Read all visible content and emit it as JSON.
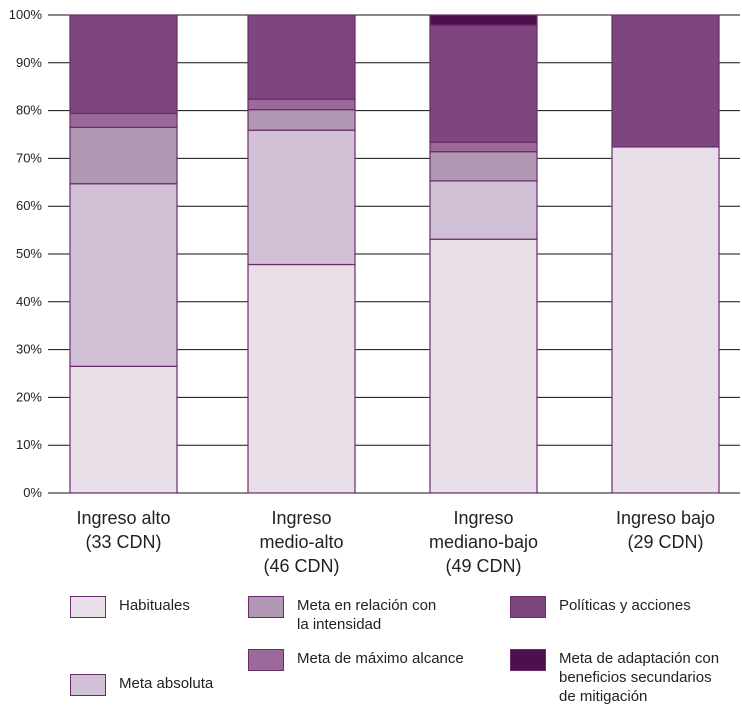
{
  "chart_data": {
    "type": "bar",
    "stacked": true,
    "ylim": [
      0,
      100
    ],
    "yticks": [
      "0%",
      "10%",
      "20%",
      "30%",
      "40%",
      "50%",
      "60%",
      "70%",
      "80%",
      "90%",
      "100%"
    ],
    "grid": true,
    "legend_position": "bottom",
    "categories": [
      [
        "Ingreso alto",
        "(33 CDN)"
      ],
      [
        "Ingreso",
        "medio-alto",
        "(46 CDN)"
      ],
      [
        "Ingreso",
        "mediano-bajo",
        "(49 CDN)"
      ],
      [
        "Ingreso bajo",
        "(29 CDN)"
      ]
    ],
    "series": [
      {
        "name": "Habituales",
        "color": "#e9dfe9",
        "values": [
          26.5,
          47.8,
          53.1,
          72.4
        ]
      },
      {
        "name": "Meta absoluta",
        "color": "#d2c0d6",
        "values": [
          38.2,
          28.1,
          12.2,
          0
        ]
      },
      {
        "name": "Meta en relación con la intensidad",
        "color": "#b097b2",
        "values": [
          11.8,
          4.3,
          6.1,
          0
        ]
      },
      {
        "name": "Meta de máximo alcance",
        "color": "#9a6b99",
        "values": [
          2.9,
          2.2,
          2.0,
          0
        ]
      },
      {
        "name": "Políticas y acciones",
        "color": "#7e4680",
        "values": [
          20.6,
          17.6,
          24.5,
          27.6
        ]
      },
      {
        "name": "Meta de adaptación con beneficios secundarios de mitigación",
        "color": "#4d0f4e",
        "values": [
          0,
          0,
          2.1,
          0
        ]
      }
    ]
  },
  "legend": [
    {
      "lines": [
        "Habituales"
      ]
    },
    {
      "lines": [
        "Meta absoluta"
      ]
    },
    {
      "lines": [
        "Meta en relación con",
        "la intensidad"
      ]
    },
    {
      "lines": [
        "Meta de máximo alcance"
      ]
    },
    {
      "lines": [
        "Políticas y acciones"
      ]
    },
    {
      "lines": [
        "Meta de adaptación con",
        "beneficios secundarios",
        "de mitigación"
      ]
    }
  ]
}
